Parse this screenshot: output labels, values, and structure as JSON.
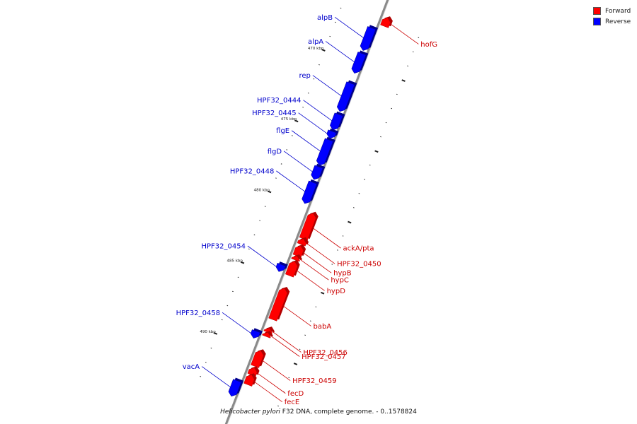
{
  "colors": {
    "forward": "#ff0000",
    "forward_dark": "#b00000",
    "reverse": "#0000ff",
    "reverse_dark": "#00008c",
    "backbone": "#8a8a8a",
    "forward_label": "#cc0000",
    "reverse_label": "#0000cc"
  },
  "legend": {
    "forward_label": "Forward",
    "reverse_label": "Reverse"
  },
  "caption": {
    "organism": "Helicobacter pylori",
    "rest": " F32 DNA, complete genome. - 0..1578824"
  },
  "diagram": {
    "units": "kbp",
    "axis_start": 466.5,
    "axis_end": 493.5,
    "ticks": [
      {
        "kbp": 470,
        "label": "470 kbp"
      },
      {
        "kbp": 475,
        "label": "475 kbp"
      },
      {
        "kbp": 480,
        "label": "480 kbp"
      },
      {
        "kbp": 485,
        "label": "485 kbp"
      },
      {
        "kbp": 490,
        "label": "490 kbp"
      }
    ],
    "genes": [
      {
        "name": "hofG",
        "strand": "forward",
        "start": 466.5,
        "end": 467.1
      },
      {
        "name": "alpB",
        "strand": "reverse",
        "start": 467.5,
        "end": 469.1
      },
      {
        "name": "alpA",
        "strand": "reverse",
        "start": 469.3,
        "end": 470.7
      },
      {
        "name": "rep",
        "strand": "reverse",
        "start": 471.4,
        "end": 473.4
      },
      {
        "name": "HPF32_0444",
        "strand": "reverse",
        "start": 473.6,
        "end": 474.7
      },
      {
        "name": "HPF32_0445",
        "strand": "reverse",
        "start": 474.8,
        "end": 475.3
      },
      {
        "name": "flgE",
        "strand": "reverse",
        "start": 475.4,
        "end": 477.2
      },
      {
        "name": "flgD",
        "strand": "reverse",
        "start": 477.3,
        "end": 478.2
      },
      {
        "name": "HPF32_0448",
        "strand": "reverse",
        "start": 478.4,
        "end": 479.9
      },
      {
        "name": "ackA/pta",
        "strand": "forward",
        "start": 480.3,
        "end": 482.1
      },
      {
        "name": "HPF32_0450",
        "strand": "forward",
        "start": 482.1,
        "end": 482.5
      },
      {
        "name": "hypB",
        "strand": "forward",
        "start": 482.6,
        "end": 483.3
      },
      {
        "name": "hypC",
        "strand": "forward",
        "start": 483.3,
        "end": 483.6
      },
      {
        "name": "hypD",
        "strand": "forward",
        "start": 483.7,
        "end": 484.7
      },
      {
        "name": "HPF32_0454",
        "strand": "reverse",
        "start": 484.2,
        "end": 484.7
      },
      {
        "name": "babA",
        "strand": "forward",
        "start": 485.6,
        "end": 487.8
      },
      {
        "name": "HPF32_0456",
        "strand": "forward",
        "start": 488.4,
        "end": 488.7
      },
      {
        "name": "HPF32_0457",
        "strand": "forward",
        "start": 488.7,
        "end": 489.0
      },
      {
        "name": "HPF32_0458",
        "strand": "reverse",
        "start": 488.9,
        "end": 489.4
      },
      {
        "name": "HPF32_0459",
        "strand": "forward",
        "start": 490.0,
        "end": 491.1
      },
      {
        "name": "fecD",
        "strand": "forward",
        "start": 491.2,
        "end": 491.7
      },
      {
        "name": "fecE",
        "strand": "forward",
        "start": 491.7,
        "end": 492.4
      },
      {
        "name": "vacA",
        "strand": "reverse",
        "start": 492.4,
        "end": 493.5
      }
    ]
  }
}
